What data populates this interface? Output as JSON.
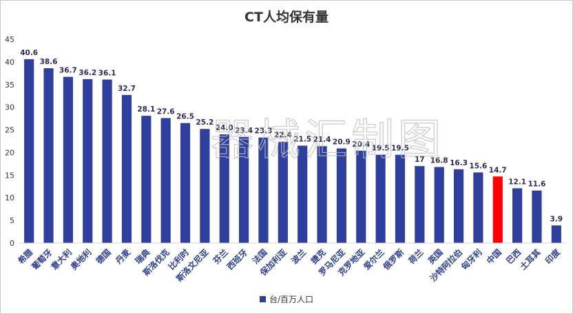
{
  "chart_data": {
    "type": "bar",
    "title": "CT人均保有量",
    "categories": [
      "希腊",
      "葡萄牙",
      "意大利",
      "奥地利",
      "德国",
      "丹麦",
      "瑞典",
      "斯洛伐克",
      "比利时",
      "斯洛文尼亚",
      "芬兰",
      "西班牙",
      "法国",
      "保加利亚",
      "波兰",
      "捷克",
      "罗马尼亚",
      "克罗地亚",
      "爱尔兰",
      "俄罗斯",
      "荷兰",
      "英国",
      "沙特阿拉伯",
      "匈牙利",
      "中国",
      "巴西",
      "土耳其",
      "印度"
    ],
    "value_labels": [
      "40.6",
      "38.6",
      "36.7",
      "36.2",
      "36.1",
      "32.7",
      "28.1",
      "27.6",
      "26.5",
      "25.2",
      "24.0",
      "23.4",
      "23.3",
      "22.4",
      "21.5",
      "21.4",
      "20.9",
      "20.4",
      "19.5",
      "19.5",
      "17",
      "16.8",
      "16.3",
      "15.6",
      "14.7",
      "12.1",
      "11.6",
      "3.9"
    ],
    "series": [
      {
        "name": "台/百万人口",
        "values": [
          40.6,
          38.6,
          36.7,
          36.2,
          36.1,
          32.7,
          28.1,
          27.6,
          26.5,
          25.2,
          24.0,
          23.4,
          23.3,
          22.4,
          21.5,
          21.4,
          20.9,
          20.4,
          19.5,
          19.5,
          17,
          16.8,
          16.3,
          15.6,
          14.7,
          12.1,
          11.6,
          3.9
        ]
      }
    ],
    "highlight_category": "中国",
    "ylim": [
      0,
      45
    ],
    "yticks": [
      0,
      5,
      10,
      15,
      20,
      25,
      30,
      35,
      40,
      45
    ],
    "grid": false,
    "legend_position": "bottom-center",
    "colors": {
      "bar": "#2e3f9e",
      "highlight": "#ff0000"
    }
  },
  "watermark": "器械汇制图"
}
